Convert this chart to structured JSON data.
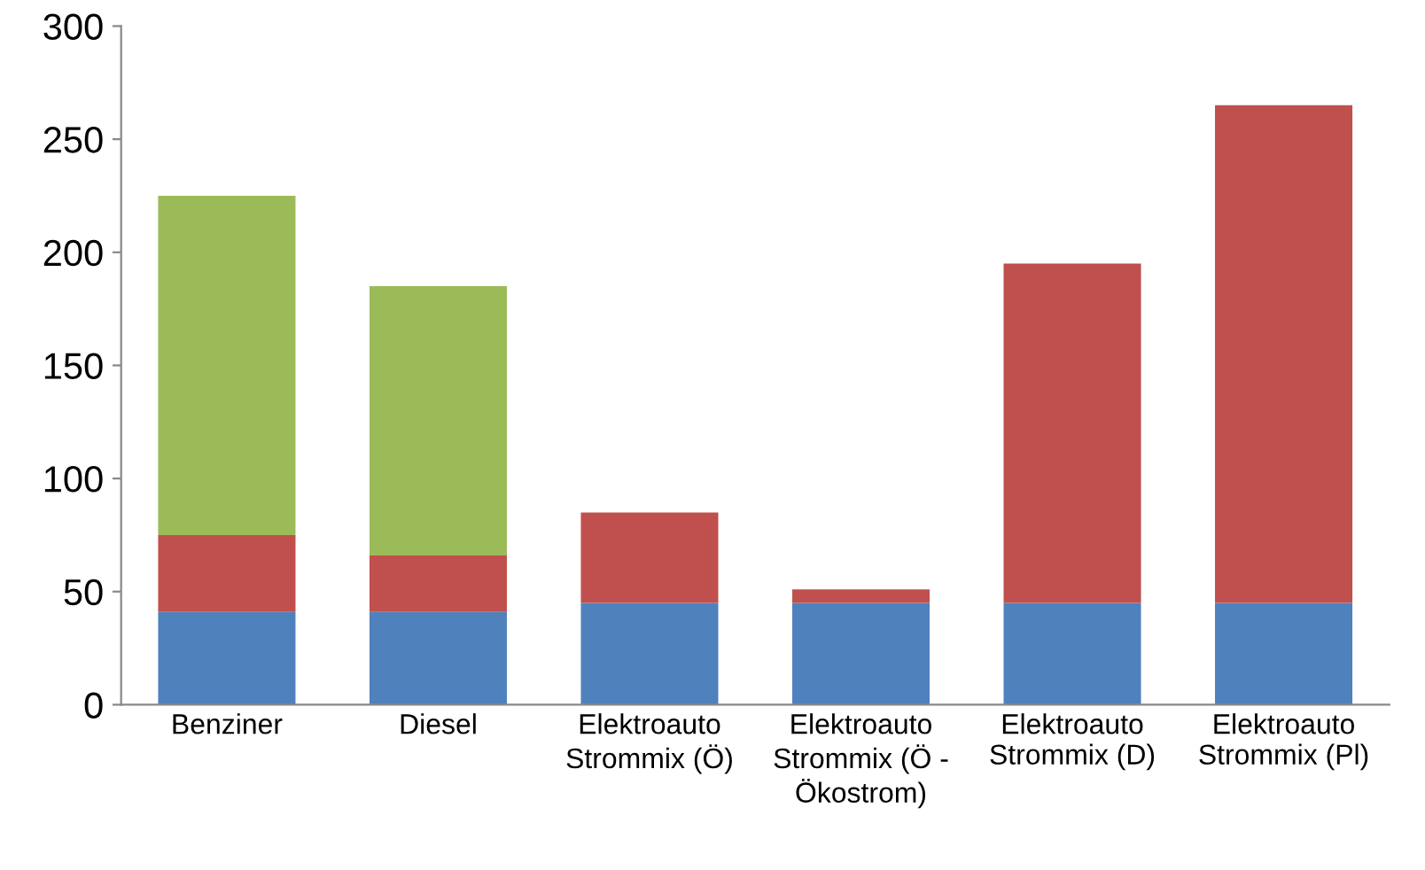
{
  "chart_data": {
    "type": "bar",
    "stacked": true,
    "categories": [
      "Benziner",
      "Diesel",
      "Elektroauto\nStrommix (Ö)",
      "Elektroauto\nStrommix (Ö -\nÖkostrom)",
      "Elektroauto\nStrommix (D)",
      "Elektroauto\nStrommix (Pl)"
    ],
    "series": [
      {
        "color": "#4f81bd",
        "values": [
          41,
          41,
          45,
          45,
          45,
          45
        ]
      },
      {
        "color": "#c0504d",
        "values": [
          34,
          25,
          40,
          6,
          150,
          220
        ]
      },
      {
        "color": "#9bbb59",
        "values": [
          150,
          119,
          null,
          null,
          null,
          null
        ]
      }
    ],
    "ylim": [
      0,
      300
    ],
    "yticks": [
      0,
      50,
      100,
      150,
      200,
      250,
      300
    ],
    "grid": false,
    "legend": false
  }
}
